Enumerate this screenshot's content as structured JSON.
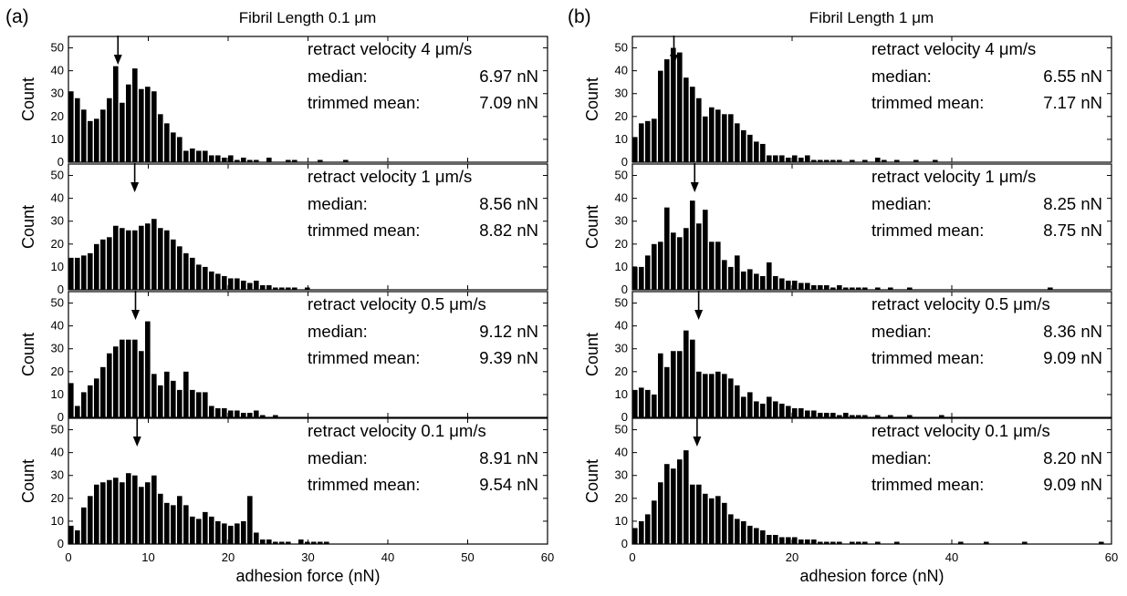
{
  "colors": {
    "bar": "#000000",
    "axis": "#000000",
    "background": "#ffffff"
  },
  "chart_data": [
    {
      "type": "bar",
      "panel_label": "(a)",
      "title": "Fibril Length 0.1 μm",
      "xlabel": "adhesion force (nN)",
      "xlim": [
        0,
        60
      ],
      "x_ticks": [
        "0",
        "10",
        "20",
        "30",
        "40",
        "50",
        "60"
      ],
      "y_ticks": [
        "0",
        "10",
        "20",
        "30",
        "40",
        "50"
      ],
      "bin_width": 0.8,
      "subplots": [
        {
          "ylabel": "Count",
          "ylim": [
            0,
            55
          ],
          "annotation": {
            "velocity": "retract velocity 4 μm/s",
            "median_label": "median:",
            "median_value": "6.97 nN",
            "mean_label": "trimmed mean:",
            "mean_value": "7.09 nN"
          },
          "arrow_x": 6.2,
          "values": [
            31,
            28,
            23,
            18,
            19,
            23,
            28,
            42,
            26,
            34,
            41,
            32,
            33,
            31,
            21,
            17,
            13,
            11,
            5,
            6,
            5,
            5,
            3,
            3,
            2,
            3,
            1,
            2,
            1,
            1,
            0,
            2,
            0,
            0,
            1,
            1,
            0,
            0,
            0,
            1,
            0,
            0,
            0,
            1,
            0,
            0,
            0,
            0,
            0,
            0,
            0,
            0,
            0,
            0,
            0,
            0,
            0,
            0,
            0,
            0,
            0,
            0,
            0,
            0,
            0,
            0,
            0,
            0,
            0,
            0,
            0,
            0,
            0,
            0,
            0
          ]
        },
        {
          "ylabel": "Count",
          "ylim": [
            0,
            55
          ],
          "annotation": {
            "velocity": "retract velocity 1 μm/s",
            "median_label": "median:",
            "median_value": "8.56 nN",
            "mean_label": "trimmed mean:",
            "mean_value": "8.82 nN"
          },
          "arrow_x": 8.3,
          "values": [
            14,
            14,
            15,
            16,
            20,
            22,
            23,
            28,
            27,
            26,
            26,
            28,
            29,
            31,
            27,
            26,
            22,
            19,
            16,
            14,
            11,
            10,
            8,
            7,
            6,
            5,
            5,
            4,
            3,
            4,
            2,
            2,
            1,
            1,
            1,
            1,
            0,
            1,
            0,
            0,
            0,
            0,
            0,
            0,
            0,
            0,
            0,
            0,
            0,
            0,
            0,
            0,
            0,
            0,
            0,
            0,
            0,
            0,
            0,
            0,
            0,
            0,
            0,
            0,
            0,
            0,
            0,
            0,
            0,
            0,
            0,
            0,
            0,
            0,
            0
          ]
        },
        {
          "ylabel": "Count",
          "ylim": [
            0,
            55
          ],
          "annotation": {
            "velocity": "retract velocity 0.5 μm/s",
            "median_label": "median:",
            "median_value": "9.12 nN",
            "mean_label": "trimmed mean:",
            "mean_value": "9.39 nN"
          },
          "arrow_x": 8.4,
          "values": [
            15,
            5,
            11,
            14,
            17,
            22,
            28,
            31,
            34,
            34,
            34,
            29,
            42,
            19,
            14,
            20,
            16,
            12,
            20,
            12,
            11,
            11,
            5,
            4,
            4,
            3,
            3,
            2,
            2,
            3,
            1,
            0,
            1,
            0,
            0,
            0,
            0,
            0,
            0,
            0,
            0,
            0,
            0,
            0,
            0,
            0,
            0,
            0,
            0,
            0,
            0,
            0,
            0,
            0,
            0,
            0,
            0,
            0,
            0,
            0,
            0,
            0,
            0,
            0,
            0,
            0,
            0,
            0,
            0,
            0,
            0,
            0,
            0,
            0,
            0
          ]
        },
        {
          "ylabel": "Count",
          "ylim": [
            0,
            55
          ],
          "annotation": {
            "velocity": "retract velocity 0.1 μm/s",
            "median_label": "median:",
            "median_value": "8.91 nN",
            "mean_label": "trimmed mean:",
            "mean_value": "9.54 nN"
          },
          "arrow_x": 8.6,
          "values": [
            8,
            6,
            16,
            21,
            26,
            27,
            28,
            29,
            27,
            31,
            30,
            25,
            27,
            30,
            22,
            18,
            17,
            21,
            17,
            12,
            11,
            14,
            12,
            10,
            9,
            8,
            9,
            10,
            21,
            5,
            2,
            2,
            1,
            1,
            1,
            0,
            2,
            1,
            1,
            1,
            1,
            0,
            0,
            0,
            0,
            0,
            0,
            0,
            0,
            0,
            0,
            0,
            0,
            0,
            0,
            0,
            0,
            0,
            0,
            0,
            0,
            0,
            0,
            0,
            0,
            0,
            0,
            0,
            0,
            0,
            0,
            0,
            0,
            0,
            0
          ]
        }
      ]
    },
    {
      "type": "bar",
      "panel_label": "(b)",
      "title": "Fibril Length 1 μm",
      "xlabel": "adhesion force (nN)",
      "xlim": [
        0,
        60
      ],
      "x_ticks": [
        "0",
        "20",
        "40",
        "60"
      ],
      "y_ticks": [
        "0",
        "10",
        "20",
        "30",
        "40",
        "50"
      ],
      "bin_width": 0.8,
      "subplots": [
        {
          "ylabel": "Count",
          "ylim": [
            0,
            55
          ],
          "annotation": {
            "velocity": "retract velocity 4 μm/s",
            "median_label": "median:",
            "median_value": "6.55 nN",
            "mean_label": "trimmed mean:",
            "mean_value": "7.17 nN"
          },
          "arrow_x": 5.2,
          "values": [
            11,
            17,
            18,
            19,
            40,
            45,
            50,
            48,
            37,
            33,
            28,
            20,
            24,
            23,
            21,
            21,
            17,
            14,
            12,
            9,
            8,
            3,
            3,
            3,
            2,
            3,
            2,
            3,
            1,
            1,
            1,
            1,
            1,
            0,
            1,
            0,
            1,
            0,
            2,
            1,
            0,
            1,
            0,
            0,
            1,
            0,
            0,
            1,
            0,
            0,
            0,
            0,
            0,
            0,
            0,
            0,
            0,
            0,
            0,
            0,
            0,
            0,
            0,
            0,
            0,
            0,
            0,
            0,
            0,
            0,
            0,
            0,
            0,
            0,
            0
          ]
        },
        {
          "ylabel": "Count",
          "ylim": [
            0,
            55
          ],
          "annotation": {
            "velocity": "retract velocity 1 μm/s",
            "median_label": "median:",
            "median_value": "8.25 nN",
            "mean_label": "trimmed mean:",
            "mean_value": "8.75 nN"
          },
          "arrow_x": 7.8,
          "values": [
            10,
            10,
            15,
            20,
            21,
            36,
            25,
            23,
            27,
            39,
            29,
            35,
            21,
            21,
            13,
            10,
            15,
            8,
            9,
            7,
            6,
            12,
            6,
            5,
            4,
            4,
            3,
            3,
            2,
            2,
            2,
            1,
            2,
            1,
            1,
            1,
            1,
            0,
            1,
            0,
            1,
            0,
            0,
            1,
            0,
            0,
            0,
            0,
            0,
            0,
            0,
            0,
            0,
            0,
            0,
            0,
            0,
            0,
            0,
            0,
            0,
            0,
            0,
            0,
            0,
            1,
            0,
            0,
            0,
            0,
            0,
            0,
            0,
            0,
            0
          ]
        },
        {
          "ylabel": "Count",
          "ylim": [
            0,
            55
          ],
          "annotation": {
            "velocity": "retract velocity 0.5 μm/s",
            "median_label": "median:",
            "median_value": "8.36 nN",
            "mean_label": "trimmed mean:",
            "mean_value": "9.09 nN"
          },
          "arrow_x": 8.3,
          "values": [
            12,
            13,
            12,
            10,
            28,
            22,
            29,
            29,
            38,
            34,
            20,
            19,
            19,
            20,
            19,
            17,
            14,
            9,
            11,
            7,
            6,
            9,
            7,
            6,
            5,
            4,
            4,
            3,
            3,
            2,
            2,
            2,
            1,
            2,
            1,
            1,
            1,
            0,
            1,
            0,
            1,
            0,
            0,
            1,
            0,
            0,
            0,
            0,
            1,
            0,
            0,
            0,
            0,
            0,
            0,
            0,
            0,
            0,
            0,
            0,
            0,
            0,
            0,
            0,
            0,
            0,
            0,
            0,
            0,
            0,
            0,
            0,
            0,
            0,
            0
          ]
        },
        {
          "ylabel": "Count",
          "ylim": [
            0,
            55
          ],
          "annotation": {
            "velocity": "retract velocity 0.1 μm/s",
            "median_label": "median:",
            "median_value": "8.20 nN",
            "mean_label": "trimmed mean:",
            "mean_value": "9.09 nN"
          },
          "arrow_x": 8.1,
          "values": [
            7,
            10,
            13,
            19,
            27,
            35,
            33,
            37,
            41,
            26,
            26,
            22,
            20,
            21,
            18,
            13,
            11,
            10,
            8,
            7,
            6,
            4,
            4,
            3,
            3,
            3,
            2,
            2,
            2,
            1,
            1,
            1,
            1,
            0,
            1,
            1,
            1,
            0,
            1,
            0,
            0,
            1,
            0,
            0,
            0,
            0,
            0,
            0,
            0,
            0,
            0,
            1,
            0,
            0,
            0,
            1,
            0,
            0,
            0,
            0,
            0,
            1,
            0,
            0,
            0,
            0,
            0,
            0,
            0,
            0,
            0,
            0,
            0,
            1,
            0
          ]
        }
      ]
    }
  ]
}
